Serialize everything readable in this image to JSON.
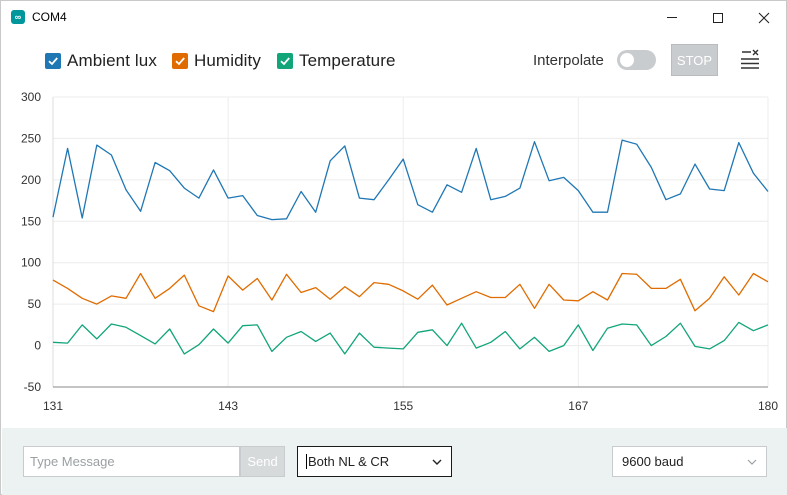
{
  "window": {
    "title": "COM4",
    "app_icon": "arduino-icon"
  },
  "toolbar": {
    "series_toggles": [
      {
        "label": "Ambient lux",
        "checked": true,
        "color": "#1f77b4"
      },
      {
        "label": "Humidity",
        "checked": true,
        "color": "#e06c00"
      },
      {
        "label": "Temperature",
        "checked": true,
        "color": "#12a57a"
      }
    ],
    "interpolate_label": "Interpolate",
    "interpolate_on": false,
    "stop_label": "STOP",
    "menu_icon": "clear-list-icon"
  },
  "chart_data": {
    "type": "line",
    "x": [
      131,
      132,
      133,
      134,
      135,
      136,
      137,
      138,
      139,
      140,
      141,
      142,
      143,
      144,
      145,
      146,
      147,
      148,
      149,
      150,
      151,
      152,
      153,
      154,
      155,
      156,
      157,
      158,
      159,
      160,
      161,
      162,
      163,
      164,
      165,
      166,
      167,
      168,
      169,
      170,
      171,
      172,
      173,
      174,
      175,
      176,
      177,
      178,
      179,
      180
    ],
    "xticks": [
      131,
      143,
      155,
      167,
      180
    ],
    "yticks": [
      -50,
      0,
      50,
      100,
      150,
      200,
      250,
      300
    ],
    "xlim": [
      131,
      180
    ],
    "ylim": [
      -50,
      300
    ],
    "grid": true,
    "series": [
      {
        "name": "Ambient lux",
        "color": "#1f77b4",
        "values": [
          155,
          238,
          154,
          242,
          230,
          188,
          162,
          221,
          211,
          190,
          178,
          212,
          178,
          181,
          157,
          152,
          153,
          186,
          161,
          223,
          241,
          178,
          176,
          200,
          225,
          170,
          161,
          194,
          185,
          238,
          176,
          180,
          190,
          246,
          199,
          203,
          187,
          161,
          161,
          248,
          243,
          215,
          176,
          183,
          219,
          189,
          187,
          245,
          208,
          186
        ]
      },
      {
        "name": "Humidity",
        "color": "#e06c00",
        "values": [
          79,
          69,
          57,
          50,
          60,
          57,
          87,
          57,
          69,
          85,
          48,
          41,
          84,
          67,
          81,
          55,
          86,
          64,
          70,
          56,
          71,
          59,
          76,
          74,
          66,
          56,
          73,
          49,
          57,
          65,
          58,
          58,
          74,
          45,
          74,
          55,
          54,
          65,
          55,
          87,
          86,
          69,
          69,
          80,
          42,
          57,
          83,
          61,
          87,
          77
        ]
      },
      {
        "name": "Temperature",
        "color": "#12a57a",
        "values": [
          4,
          3,
          25,
          8,
          26,
          22,
          12,
          2,
          20,
          -10,
          1,
          20,
          3,
          24,
          25,
          -7,
          10,
          17,
          5,
          15,
          -10,
          15,
          -2,
          -3,
          -4,
          16,
          19,
          0,
          27,
          -3,
          4,
          17,
          -4,
          10,
          -7,
          0,
          25,
          -6,
          21,
          26,
          25,
          0,
          11,
          27,
          -1,
          -4,
          6,
          28,
          18,
          25
        ]
      }
    ]
  },
  "bottom": {
    "message_placeholder": "Type Message",
    "message_value": "",
    "send_label": "Send",
    "line_ending": "Both NL & CR",
    "baud": "9600 baud"
  }
}
